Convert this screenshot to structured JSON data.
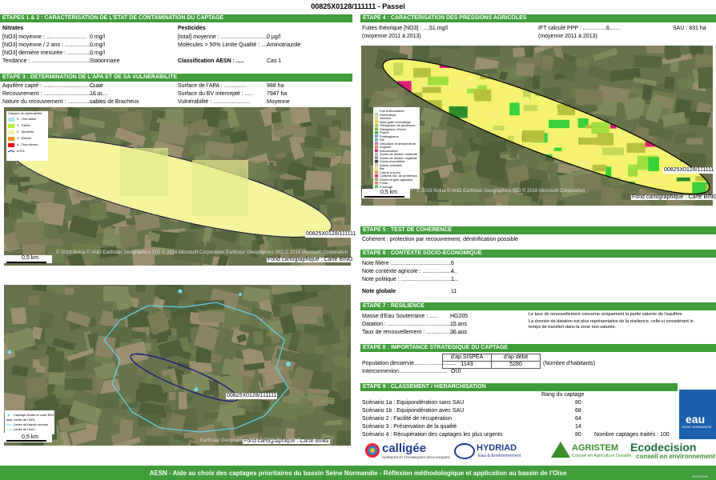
{
  "header": {
    "title": "00825X0128/111111 - Passel"
  },
  "etape12": {
    "title": "ETAPES 1 & 2 : CARACTERISATION DE L'ETAT DE CONTAMINATION DU CAPTAGE",
    "nitrates": {
      "heading": "Nitrates",
      "rows": [
        [
          "[NO3] moyenne : ..........................",
          "0 mg/l"
        ],
        [
          "[NO3] moyenne / 2 ans : ....................",
          "0 mg/l"
        ],
        [
          "[NO3] dernière mesurée : .................",
          "0 mg/l"
        ],
        [
          "Tendance : ......................................",
          "Stationnaire"
        ]
      ]
    },
    "pesticides": {
      "heading": "Pesticides",
      "rows": [
        [
          "[total] moyenne : ...............................",
          "0 µg/l"
        ],
        [
          "Molécules > 50% Limite Qualité : ....",
          "Aminotriazole"
        ],
        [
          "Classification AESN : .....",
          "Cas 1"
        ]
      ]
    }
  },
  "etape3": {
    "title": "ETAPE 3 : DETERMINATION DE L'APA ET DE SA VULNERABILITE",
    "left": [
      [
        "Aquifère capté : ......................................",
        "Craie"
      ],
      [
        "Recouvrement : .........................................",
        "16 m"
      ],
      [
        "Nature du recouvrement : ........................",
        "sables de Bracheux"
      ]
    ],
    "right": [
      [
        "Surface de l'APA : ...............",
        "988 ha"
      ],
      [
        "Surface du BV intercepté : .....",
        "7947 ha"
      ],
      [
        "Vulnérabilité : ........................",
        "Moyenne"
      ]
    ]
  },
  "map1": {
    "legend_title": "Classes de vulnérabilité",
    "legend": [
      "0 - Très faible",
      "1 - Faible",
      "2 - Modérée",
      "3 - Elevée",
      "4 - Très élevée",
      "A.P.A"
    ],
    "label": "00825X0128/111111",
    "scale": "0,5 km",
    "credit": "Fond cartographique : Carte BING",
    "copyright": "© 2016 Nokia  © AND  Earthstar Geographics  SIO © 2016 Microsoft Corporation  Earthstar Geographics  SIO © 2016 Microsoft Corporation"
  },
  "map2": {
    "legend": [
      "Captage étudié et code BSS",
      "Limite de l'APA",
      "Limite du bassin versant",
      "Limite de l'AAC"
    ],
    "label": "00825X0128/111111",
    "scale": "0,5 km",
    "credit": "Fond cartographique : Carte BING",
    "copyright": "Earthstar Geographics  SIO © 2016 Microsoft Corporation"
  },
  "etape4": {
    "title": "ETAPE 4 : CARACTERISATION DES PRESSIONS AGRICOLES",
    "fuites_label": "Fuites théorique [NO3] : ...........",
    "fuites_value": "51 mg/l",
    "fuites_note": "(moyenne 2011 à 2013)",
    "ift_label": "IFT calculé PPP : ........................",
    "ift_value": "6",
    "ift_note": "(moyenne 2011 à 2013)",
    "sau": "SAU : 831 ha"
  },
  "map4": {
    "legend": [
      "Pas d'information",
      "Horticulture",
      "Jachère",
      "Mais grain et ensilage",
      "Oléagineux de printemps",
      "Oléagineux d'hiver",
      "Prairie",
      "Protéagineux",
      "Riz",
      "Viticulture et arboriculture",
      "Légume",
      "Arboriculture",
      "Zones de dilution minérale",
      "Zones de dilution végétale",
      "Zones incendiées",
      "Autres céréales",
      "Blé",
      "Canne à sucre",
      "Cultures ind. de printemps",
      "Divers et gels agricoles",
      "Fruits",
      "Fourrage"
    ],
    "label": "00825X0128/111111",
    "scale": "0,5 km",
    "credit": "Fond cartographique : Carte BING",
    "copyright": "© 2016 Nokia  © AND  Earthstar Geographics  SIO © 2016 Microsoft Corporation"
  },
  "etape5": {
    "title": "ETAPE 5 : TEST DE COHERENCE",
    "text": "Cohérent : protection par recouvrement, dénitrification possible"
  },
  "etape6": {
    "title": "ETAPE 6 : CONTEXTE SOCIO-ECONOMIQUE",
    "rows": [
      [
        "Note filière .......................................",
        "6"
      ],
      [
        "Note contexte agricole : ......................",
        "4"
      ],
      [
        "Note politique : .....................................",
        "1"
      ],
      [
        "Note globale",
        "11"
      ]
    ]
  },
  "etape7": {
    "title": "ETAPE 7 : RESILIENCE",
    "rows": [
      [
        "Masse d'Eau Souterraine : .....",
        "HG205"
      ],
      [
        "Datation : ..............................................",
        "15 ans"
      ],
      [
        "Taux de renouvellement : .........................",
        "36 ans"
      ]
    ],
    "notes": [
      "Le taux de renouvellement concerne uniquement la partie saturée de l'aquifère.",
      "La donnée de datation est plus représentative de la résilience, celle-ci considérant le",
      "temps de transfert dans la zone non saturée."
    ]
  },
  "etape8": {
    "title": "ETAPE 8 : IMPORTANCE STRATEGIQUE DU CAPTAGE",
    "columns": [
      "d'ap.SISPEA",
      "d'ap débit"
    ],
    "population_label": "Population desservie...........................",
    "population": [
      1143,
      5280
    ],
    "population_note": "(Nombre d'habitants)",
    "interconnexion_label": "Interconnexion...............................",
    "interconnexion": "OUI"
  },
  "etape9": {
    "title": "ETAPE 9 : CLASSEMENT / HIERARCHISATION",
    "rank_heading": "Rang du captage",
    "rows": [
      [
        "Scénario 1a : Equipondération sans SAU",
        80
      ],
      [
        "Scénario 1b : Equipondération avec SAU",
        68
      ],
      [
        "Scénario 2 : Facilité de récupération",
        64
      ],
      [
        "Scénario 3 : Préservation de la qualité",
        14
      ],
      [
        "Scénario 4 : Récupération des captages les plus urgents",
        80
      ]
    ],
    "total": "Nombre captages traités : 100"
  },
  "logos": {
    "calligee": "calligée",
    "calligee_sub": "SCIENCES ET TECHNIQUES GÉOLOGIQUES",
    "hydriad": "HYDRIAD",
    "hydriad_sub": "Eau & Environnement",
    "agristem": "AGRISTEM",
    "agristem_sub": "Conseil en Agriculture Durable",
    "ecodecision": "Ecodecision",
    "ecodecision_sub": "conseil en environnement",
    "aesn": "eau",
    "aesn_sub": "SEINE NORMANDIE"
  },
  "footer": {
    "text": "AESN - Aide au choix des captages prioritaires du bassin Seine Normandie - Réflexion méthodologique et application au bassin de l'Oise",
    "date": "02/12/2016"
  }
}
